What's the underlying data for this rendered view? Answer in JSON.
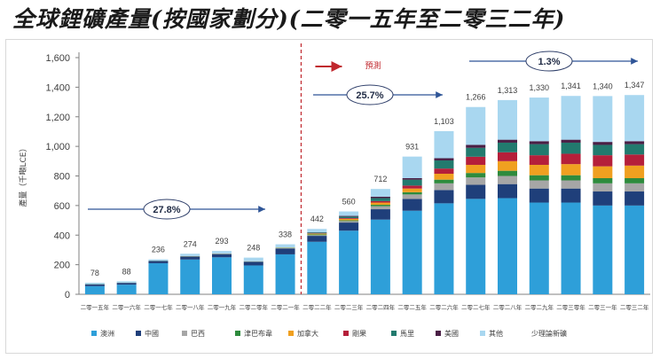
{
  "chart_data": {
    "type": "bar",
    "stacked": true,
    "title": "全球鋰礦產量(按國家劃分)(二零一五年至二零三二年)",
    "ylabel": "產量（千噸LCE）",
    "ylim": [
      0,
      1600
    ],
    "yticks": [
      "0",
      "200",
      "400",
      "600",
      "800",
      "1,000",
      "1,200",
      "1,400",
      "1,600"
    ],
    "categories": [
      "二零一五年",
      "二零一六年",
      "二零一七年",
      "二零一八年",
      "二零一九年",
      "二零二零年",
      "二零二一年",
      "二零二二年",
      "二零二三年",
      "二零二四年",
      "二零二五年",
      "二零二六年",
      "二零二七年",
      "二零二八年",
      "二零二九年",
      "二零三零年",
      "二零三一年",
      "二零三二年"
    ],
    "totals": [
      "78",
      "88",
      "236",
      "274",
      "293",
      "248",
      "338",
      "442",
      "560",
      "712",
      "931",
      "1,103",
      "1,266",
      "1,313",
      "1,330",
      "1,341",
      "1,340",
      "1,347"
    ],
    "series": [
      {
        "name": "澳洲",
        "color": "#2e9fd9",
        "values": [
          55,
          65,
          210,
          235,
          250,
          195,
          270,
          355,
          430,
          505,
          565,
          615,
          645,
          650,
          620,
          620,
          600,
          600
        ]
      },
      {
        "name": "中國",
        "color": "#1f3f7a",
        "values": [
          12,
          12,
          15,
          20,
          22,
          25,
          40,
          40,
          55,
          70,
          80,
          90,
          95,
          95,
          95,
          95,
          95,
          95
        ]
      },
      {
        "name": "巴西",
        "color": "#a6a6a6",
        "values": [
          1,
          1,
          1,
          1,
          1,
          1,
          2,
          5,
          10,
          20,
          30,
          45,
          50,
          55,
          55,
          55,
          55,
          55
        ]
      },
      {
        "name": "津巴布韋",
        "color": "#2e8b3d",
        "values": [
          1,
          1,
          1,
          1,
          1,
          1,
          2,
          5,
          5,
          10,
          15,
          25,
          30,
          35,
          35,
          35,
          35,
          35
        ]
      },
      {
        "name": "加拿大",
        "color": "#f0a020",
        "values": [
          0,
          0,
          0,
          1,
          1,
          1,
          2,
          5,
          10,
          15,
          25,
          40,
          55,
          65,
          70,
          75,
          80,
          85
        ]
      },
      {
        "name": "剛果",
        "color": "#b51f3a",
        "values": [
          0,
          0,
          0,
          0,
          0,
          0,
          0,
          2,
          5,
          10,
          20,
          35,
          55,
          60,
          65,
          70,
          75,
          75
        ]
      },
      {
        "name": "馬里",
        "color": "#227a6e",
        "values": [
          0,
          0,
          0,
          0,
          0,
          0,
          0,
          5,
          10,
          20,
          40,
          55,
          60,
          65,
          75,
          75,
          70,
          70
        ]
      },
      {
        "name": "美國",
        "color": "#4a1f45",
        "values": [
          0,
          0,
          0,
          0,
          0,
          0,
          0,
          2,
          5,
          10,
          10,
          15,
          20,
          20,
          20,
          20,
          20,
          20
        ]
      },
      {
        "name": "其他",
        "color": "#a9d7f0",
        "values": [
          9,
          9,
          9,
          16,
          18,
          25,
          22,
          23,
          30,
          52,
          146,
          183,
          256,
          268,
          295,
          296,
          310,
          312
        ]
      }
    ],
    "extra_legend": "少理論新礦",
    "legend_position": "bottom",
    "annotations": {
      "forecast_label": "預測",
      "cagr_history": "27.8%",
      "cagr_forecast1": "25.7%",
      "cagr_forecast2": "1.3%"
    },
    "colors": {
      "arrow": "#2f5597",
      "forecast_divider": "#c0272d",
      "axis": "#808080",
      "text": "#404040"
    }
  }
}
